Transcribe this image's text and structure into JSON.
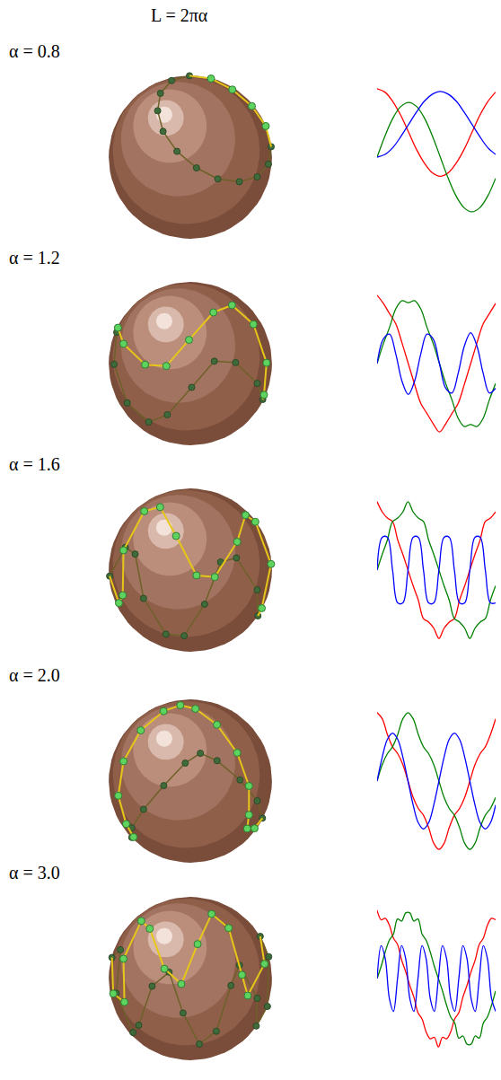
{
  "title": "L = 2πα",
  "chart_data": [
    {
      "type": "line",
      "title": "α = 0.8",
      "ylim": [
        -1.05,
        1.05
      ],
      "tick_labels": false,
      "series": [
        {
          "color": "#ff0000",
          "values": [
            1,
            0.95,
            0.81,
            0.61,
            0.36,
            0.11,
            -0.09,
            -0.23,
            -0.28,
            -0.23,
            -0.09,
            0.11,
            0.36,
            0.61,
            0.81,
            0.95
          ]
        },
        {
          "color": "#008000",
          "values": [
            0,
            0.31,
            0.57,
            0.74,
            0.8,
            0.74,
            0.57,
            0.31,
            0,
            -0.31,
            -0.57,
            -0.74,
            -0.8,
            -0.74,
            -0.57,
            -0.31
          ]
        },
        {
          "color": "#0000ff",
          "values": [
            0,
            0.04,
            0.14,
            0.3,
            0.48,
            0.66,
            0.82,
            0.92,
            0.96,
            0.92,
            0.82,
            0.66,
            0.48,
            0.3,
            0.14,
            0.04
          ]
        }
      ]
    },
    {
      "type": "line",
      "title": "α = 1.2",
      "ylim": [
        -1.05,
        1.05
      ],
      "tick_labels": false,
      "series": [
        {
          "color": "#ff0000",
          "values": [
            1,
            0.88,
            0.73,
            0.58,
            0.3,
            0,
            -0.3,
            -0.58,
            -0.73,
            -0.88,
            -1,
            -0.88,
            -0.73,
            -0.58,
            -0.3,
            0,
            0.3,
            0.58,
            0.73,
            0.88
          ]
        },
        {
          "color": "#008000",
          "values": [
            0,
            0.29,
            0.53,
            0.8,
            0.92,
            0.89,
            0.92,
            0.8,
            0.53,
            0.29,
            0,
            -0.29,
            -0.53,
            -0.8,
            -0.92,
            -0.89,
            -0.92,
            -0.8,
            -0.53,
            -0.29
          ]
        },
        {
          "color": "#0000ff",
          "values": [
            0,
            0.36,
            0.43,
            0.14,
            -0.26,
            -0.45,
            -0.26,
            0.14,
            0.43,
            0.36,
            0,
            -0.36,
            -0.43,
            -0.14,
            0.26,
            0.45,
            0.26,
            -0.14,
            -0.43,
            -0.36
          ]
        }
      ]
    },
    {
      "type": "line",
      "title": "α = 1.6",
      "ylim": [
        -1.05,
        1.05
      ],
      "tick_labels": false,
      "series": [
        {
          "color": "#ff0000",
          "values": [
            1,
            0.85,
            0.76,
            0.71,
            0.44,
            0.23,
            0,
            -0.23,
            -0.44,
            -0.71,
            -0.76,
            -0.85,
            -1,
            -0.85,
            -0.76,
            -0.71,
            -0.44,
            -0.23,
            0,
            0.23,
            0.44,
            0.71,
            0.76,
            0.85
          ]
        },
        {
          "color": "#008000",
          "values": [
            0,
            0.23,
            0.44,
            0.71,
            0.76,
            0.85,
            1,
            0.85,
            0.76,
            0.71,
            0.44,
            0.23,
            0,
            -0.23,
            -0.44,
            -0.71,
            -0.76,
            -0.85,
            -1,
            -0.85,
            -0.76,
            -0.71,
            -0.44,
            -0.23
          ]
        },
        {
          "color": "#0000ff",
          "values": [
            0,
            0.48,
            0.48,
            0,
            -0.48,
            -0.48,
            0,
            0.48,
            0.48,
            0,
            -0.48,
            -0.48,
            0,
            0.48,
            0.48,
            0,
            -0.48,
            -0.48,
            0,
            0.48,
            0.48,
            0,
            -0.48,
            -0.48
          ]
        }
      ]
    },
    {
      "type": "line",
      "title": "α = 2.0",
      "ylim": [
        -1.05,
        1.05
      ],
      "tick_labels": false,
      "series": [
        {
          "color": "#ff0000",
          "values": [
            1,
            0.91,
            0.68,
            0.5,
            0.4,
            0.24,
            0,
            -0.24,
            -0.4,
            -0.5,
            -0.68,
            -0.91,
            -1,
            -0.91,
            -0.68,
            -0.5,
            -0.4,
            -0.24,
            0,
            0.24,
            0.4,
            0.5,
            0.68,
            0.91
          ]
        },
        {
          "color": "#008000",
          "values": [
            0,
            0.24,
            0.4,
            0.5,
            0.68,
            0.91,
            1,
            0.91,
            0.68,
            0.5,
            0.4,
            0.24,
            0,
            -0.24,
            -0.4,
            -0.5,
            -0.68,
            -0.91,
            -1,
            -0.91,
            -0.68,
            -0.5,
            -0.4,
            -0.24
          ]
        },
        {
          "color": "#0000ff",
          "values": [
            0,
            0.35,
            0.61,
            0.7,
            0.61,
            0.35,
            0,
            -0.35,
            -0.61,
            -0.7,
            -0.61,
            -0.35,
            0,
            0.35,
            0.61,
            0.7,
            0.61,
            0.35,
            0,
            -0.35,
            -0.61,
            -0.7,
            -0.61,
            -0.35
          ]
        }
      ]
    },
    {
      "type": "line",
      "title": "α = 3.0",
      "ylim": [
        -1.05,
        1.05
      ],
      "tick_labels": false,
      "series": [
        {
          "color": "#ff0000",
          "values": [
            1,
            0.86,
            0.88,
            0.78,
            0.59,
            0.5,
            0.27,
            0.1,
            -0.1,
            -0.27,
            -0.5,
            -0.59,
            -0.78,
            -0.88,
            -0.86,
            -1,
            -0.86,
            -0.88,
            -0.78,
            -0.59,
            -0.5,
            -0.27,
            -0.1,
            0.1,
            0.27,
            0.5,
            0.59,
            0.78,
            0.88,
            0.86
          ]
        },
        {
          "color": "#008000",
          "values": [
            0,
            0.18,
            0.39,
            0.56,
            0.65,
            0.87,
            0.84,
            0.96,
            0.96,
            0.84,
            0.87,
            0.65,
            0.56,
            0.39,
            0.18,
            0,
            -0.18,
            -0.39,
            -0.56,
            -0.65,
            -0.87,
            -0.84,
            -0.96,
            -0.96,
            -0.84,
            -0.87,
            -0.65,
            -0.56,
            -0.39,
            -0.18
          ]
        },
        {
          "color": "#0000ff",
          "values": [
            0,
            0.48,
            0.29,
            -0.29,
            -0.48,
            0,
            0.48,
            0.29,
            -0.29,
            -0.48,
            0,
            0.48,
            0.29,
            -0.29,
            -0.48,
            0,
            0.48,
            0.29,
            -0.29,
            -0.48,
            0,
            0.48,
            0.29,
            -0.29,
            -0.48,
            0,
            0.48,
            0.29,
            -0.29,
            -0.48
          ]
        }
      ]
    }
  ]
}
